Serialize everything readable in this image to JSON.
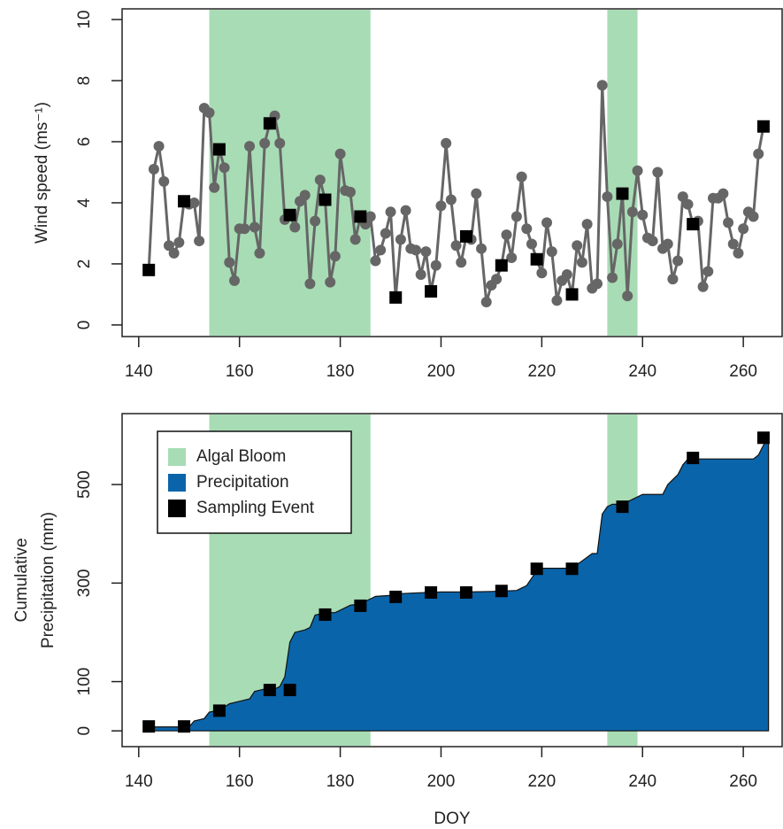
{
  "chart_data": [
    {
      "type": "line",
      "ylabel": "Wind speed (ms⁻¹)",
      "xlim": [
        136.7,
        267.7
      ],
      "ylim": [
        -0.38,
        10.35
      ],
      "xticks": [
        140,
        160,
        180,
        200,
        220,
        240,
        260
      ],
      "yticks": [
        0,
        2,
        4,
        6,
        8,
        10
      ],
      "spans": [
        [
          154,
          186
        ],
        [
          233,
          239
        ]
      ],
      "span_color": "#a8dcb5",
      "x": [
        142,
        143,
        144,
        145,
        146,
        147,
        148,
        149,
        150,
        151,
        152,
        153,
        154,
        155,
        156,
        157,
        158,
        159,
        160,
        161,
        162,
        163,
        164,
        165,
        166,
        167,
        168,
        169,
        170,
        171,
        172,
        173,
        174,
        175,
        176,
        177,
        178,
        179,
        180,
        181,
        182,
        183,
        184,
        185,
        186,
        187,
        188,
        189,
        190,
        191,
        192,
        193,
        194,
        195,
        196,
        197,
        198,
        199,
        200,
        201,
        202,
        203,
        204,
        205,
        206,
        207,
        208,
        209,
        210,
        211,
        212,
        213,
        214,
        215,
        216,
        217,
        218,
        219,
        220,
        221,
        222,
        223,
        224,
        225,
        226,
        227,
        228,
        229,
        230,
        231,
        232,
        233,
        234,
        235,
        236,
        237,
        238,
        239,
        240,
        241,
        242,
        243,
        244,
        245,
        246,
        247,
        248,
        249,
        250,
        251,
        252,
        253,
        254,
        255,
        256,
        257,
        258,
        259,
        260,
        261,
        262,
        263,
        264
      ],
      "series": [
        {
          "color": "#666666",
          "values": [
            1.8,
            5.1,
            5.85,
            4.7,
            2.6,
            2.35,
            2.7,
            4.05,
            3.95,
            4.0,
            2.75,
            7.1,
            6.95,
            4.5,
            5.75,
            5.15,
            2.05,
            1.45,
            3.15,
            3.15,
            5.85,
            3.2,
            2.35,
            5.95,
            6.6,
            6.85,
            5.95,
            3.45,
            3.6,
            3.2,
            4.05,
            4.25,
            1.35,
            3.4,
            4.75,
            4.1,
            1.4,
            2.25,
            5.6,
            4.4,
            4.35,
            2.8,
            3.55,
            3.3,
            3.55,
            2.1,
            2.45,
            3.0,
            3.7,
            0.9,
            2.8,
            3.75,
            2.5,
            2.45,
            1.65,
            2.4,
            1.1,
            1.95,
            3.9,
            5.95,
            4.1,
            2.6,
            2.05,
            2.9,
            2.8,
            4.3,
            2.5,
            0.75,
            1.3,
            1.5,
            1.95,
            2.95,
            2.2,
            3.55,
            4.85,
            3.15,
            2.65,
            2.15,
            1.7,
            3.35,
            2.4,
            0.8,
            1.45,
            1.65,
            1.0,
            2.6,
            2.05,
            3.3,
            1.2,
            1.35,
            7.85,
            4.2,
            1.55,
            2.65,
            4.3,
            0.95,
            3.7,
            5.05,
            3.6,
            2.85,
            2.75,
            5.0,
            2.5,
            2.65,
            1.5,
            2.1,
            4.2,
            3.95,
            3.3,
            3.4,
            1.25,
            1.75,
            4.15,
            4.15,
            4.3,
            3.35,
            2.65,
            2.35,
            3.15,
            3.7,
            3.55,
            5.6,
            6.5
          ]
        }
      ],
      "sampling": {
        "color": "#000000",
        "x": [
          142,
          149,
          156,
          166,
          170,
          177,
          184,
          191,
          198,
          205,
          212,
          219,
          226,
          236,
          250,
          264
        ],
        "values": [
          1.8,
          4.05,
          5.75,
          6.6,
          3.6,
          4.1,
          3.55,
          0.9,
          1.1,
          2.9,
          1.95,
          2.15,
          1.0,
          4.3,
          3.3,
          6.5
        ]
      }
    },
    {
      "type": "area",
      "xlabel": "DOY",
      "ylabel": [
        "Cumulative",
        "Precipitation (mm)"
      ],
      "xlim": [
        136.7,
        267.7
      ],
      "ylim": [
        -32,
        644
      ],
      "xticks": [
        140,
        160,
        180,
        200,
        220,
        240,
        260
      ],
      "yticks": [
        0,
        100,
        300,
        500
      ],
      "legend": "top-left",
      "series": [
        {
          "name": "Algal Bloom",
          "color": "#a8dcb5",
          "spans": [
            [
              154,
              186
            ],
            [
              233,
              239
            ]
          ]
        },
        {
          "name": "Precipitation",
          "color": "#0a64aa",
          "x": [
            142,
            150,
            151,
            153,
            154,
            156,
            158,
            160,
            162,
            163,
            165,
            167,
            168,
            169,
            170,
            171,
            173,
            174,
            175,
            177,
            179,
            180,
            182,
            184,
            186,
            187,
            190,
            191,
            195,
            200,
            205,
            210,
            215,
            216,
            217,
            219,
            220,
            226,
            228,
            230,
            231,
            232,
            233,
            234,
            236,
            238,
            240,
            244,
            245,
            247,
            248,
            249,
            255,
            262,
            263,
            264,
            265
          ],
          "values": [
            8,
            8,
            20,
            25,
            38,
            42,
            55,
            60,
            65,
            80,
            85,
            85,
            90,
            110,
            180,
            200,
            205,
            210,
            235,
            240,
            240,
            245,
            255,
            258,
            268,
            273,
            275,
            278,
            280,
            282,
            282,
            283,
            285,
            290,
            295,
            325,
            330,
            330,
            345,
            360,
            360,
            440,
            455,
            460,
            460,
            470,
            480,
            480,
            500,
            520,
            540,
            552,
            552,
            552,
            560,
            580,
            600
          ]
        },
        {
          "name": "Sampling Event",
          "color": "#000000",
          "x": [
            142,
            149,
            156,
            166,
            170,
            177,
            184,
            191,
            198,
            205,
            212,
            219,
            226,
            236,
            250,
            264
          ],
          "values": [
            9,
            9,
            41,
            83,
            83,
            236,
            254,
            272,
            281,
            281,
            284,
            329,
            329,
            455,
            554,
            595
          ]
        }
      ]
    }
  ]
}
